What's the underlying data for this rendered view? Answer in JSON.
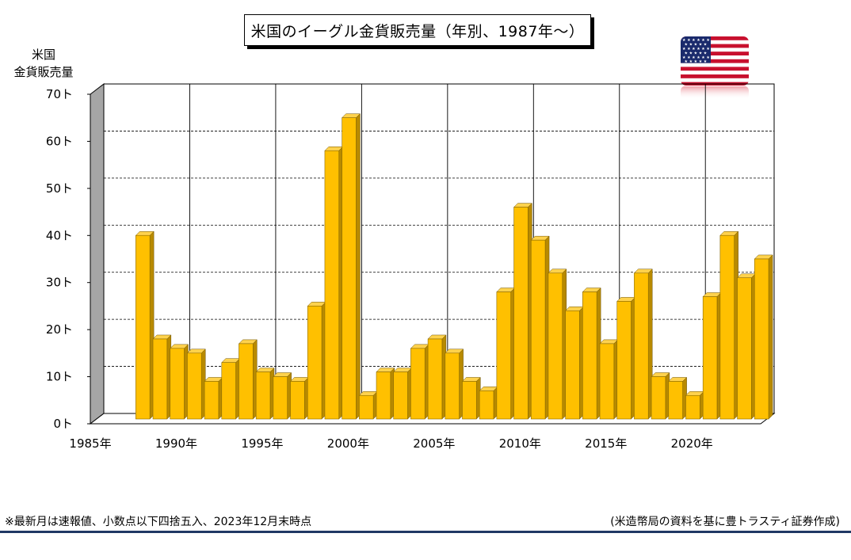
{
  "title": "米国のイーグル金貨販売量（年別、1987年～）",
  "y_axis_label": [
    "米国",
    "金貨販売量"
  ],
  "footer": {
    "note": "※最新月は速報値、小数点以下四捨五入、2023年12月末時点",
    "source": "(米造幣局の資料を基に豊トラスティ証券作成)"
  },
  "colors": {
    "bar_front": "#ffc000",
    "bar_side": "#b88a00",
    "bar_top": "#ffd24d",
    "wall": "#a6a6a6",
    "footer_rule": "#1f3864"
  },
  "chart_data": {
    "type": "bar",
    "x": [
      1987,
      1988,
      1989,
      1990,
      1991,
      1992,
      1993,
      1994,
      1995,
      1996,
      1997,
      1998,
      1999,
      2000,
      2001,
      2002,
      2003,
      2004,
      2005,
      2006,
      2007,
      2008,
      2009,
      2010,
      2011,
      2012,
      2013,
      2014,
      2015,
      2016,
      2017,
      2018,
      2019,
      2020,
      2021,
      2022,
      2023
    ],
    "values": [
      39,
      17,
      15,
      14,
      8,
      12,
      16,
      10,
      9,
      8,
      24,
      57,
      64,
      5,
      10,
      10,
      15,
      17,
      14,
      8,
      6,
      27,
      45,
      38,
      31,
      23,
      27,
      16,
      25,
      31,
      9,
      8,
      5,
      26,
      39,
      30,
      34
    ],
    "x_ticks": [
      "1985年",
      "1990年",
      "1995年",
      "2000年",
      "2005年",
      "2010年",
      "2015年",
      "2020年"
    ],
    "x_tick_values": [
      1985,
      1990,
      1995,
      2000,
      2005,
      2010,
      2015,
      2020
    ],
    "y_ticks": [
      "0ト",
      "10ト",
      "20ト",
      "30ト",
      "40ト",
      "50ト",
      "60ト",
      "70ト"
    ],
    "y_tick_values": [
      0,
      10,
      20,
      30,
      40,
      50,
      60,
      70
    ],
    "xlim": [
      1985,
      2024
    ],
    "ylim": [
      0,
      70
    ],
    "grid": true
  }
}
